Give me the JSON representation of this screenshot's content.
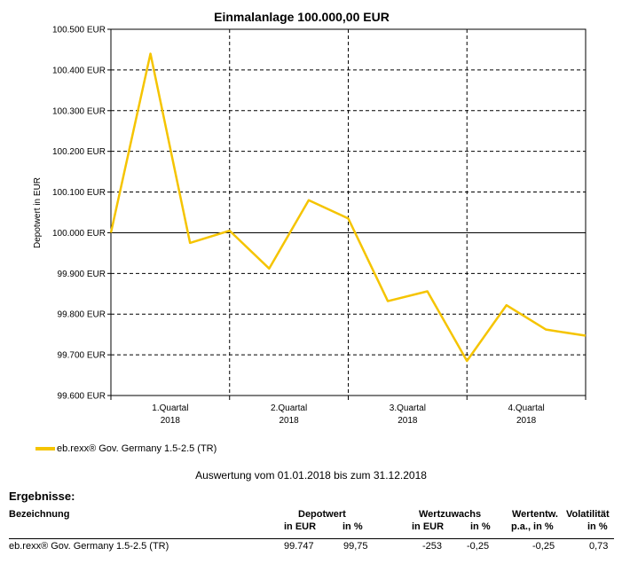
{
  "chart_data": {
    "type": "line",
    "title": "Einmalanlage 100.000,00 EUR",
    "ylabel": "Depotwert in EUR",
    "xlabel": "",
    "ylim": [
      99600,
      100500
    ],
    "yticks": [
      "99.600 EUR",
      "99.700 EUR",
      "99.800 EUR",
      "99.900 EUR",
      "100.000 EUR",
      "100.100 EUR",
      "100.200 EUR",
      "100.300 EUR",
      "100.400 EUR",
      "100.500 EUR"
    ],
    "yticks_values": [
      99600,
      99700,
      99800,
      99900,
      100000,
      100100,
      100200,
      100300,
      100400,
      100500
    ],
    "x_categories": [
      {
        "line1": "1.Quartal",
        "line2": "2018"
      },
      {
        "line1": "2.Quartal",
        "line2": "2018"
      },
      {
        "line1": "3.Quartal",
        "line2": "2018"
      },
      {
        "line1": "4.Quartal",
        "line2": "2018"
      }
    ],
    "x_range": [
      0,
      12
    ],
    "grid": true,
    "reference_line": 100000,
    "series": [
      {
        "name": "eb.rexx® Gov. Germany 1.5-2.5 (TR)",
        "color": "#f5c400",
        "x": [
          0,
          1,
          2,
          3,
          4,
          5,
          6,
          7,
          8,
          9,
          10,
          11,
          12
        ],
        "values": [
          100000,
          100440,
          99975,
          100005,
          99912,
          100080,
          100035,
          99832,
          99856,
          99685,
          99822,
          99762,
          99747
        ]
      }
    ]
  },
  "legend": {
    "label": "eb.rexx® Gov. Germany 1.5-2.5 (TR)",
    "color": "#f5c400",
    "position": "bottom-left"
  },
  "period_text": "Auswertung vom 01.01.2018 bis zum 31.12.2018",
  "results": {
    "title": "Ergebnisse:",
    "header": {
      "bezeichnung": "Bezeichnung",
      "depotwert": "Depotwert",
      "wertzuwachs": "Wertzuwachs",
      "wertentw": "Wertentw.",
      "volatilitaet": "Volatilität",
      "depot_eur": "in EUR",
      "depot_pct": "in %",
      "wert_eur": "in EUR",
      "wert_pct": "in %",
      "pa": "p.a., in %",
      "vol_pct": "in %"
    },
    "rows": [
      {
        "bezeichnung": "eb.rexx® Gov. Germany 1.5-2.5 (TR)",
        "depot_eur": "99.747",
        "depot_pct": "99,75",
        "wert_eur": "-253",
        "wert_pct": "-0,25",
        "pa": "-0,25",
        "vol": "0,73"
      }
    ]
  }
}
